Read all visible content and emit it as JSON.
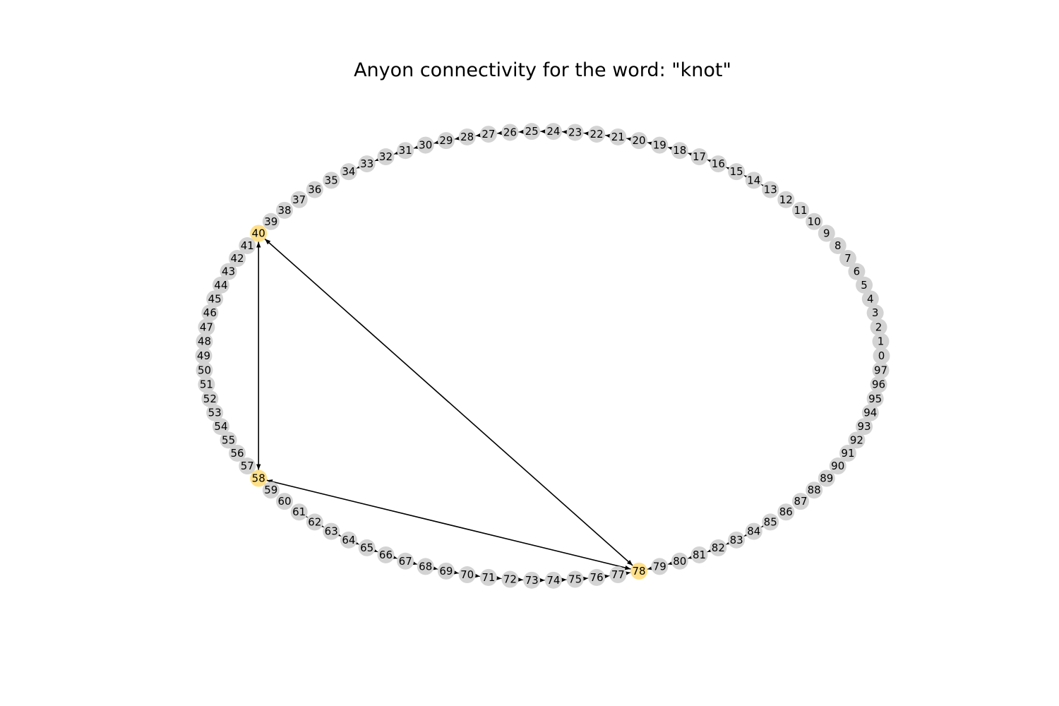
{
  "title": "Anyon connectivity for the word: \"knot\"",
  "colors": {
    "node_default": "#d3d3d3",
    "node_highlight": "#ffe08a",
    "edge": "#000000",
    "label": "#000000"
  },
  "graph": {
    "node_count": 98,
    "layout": "ellipse, node 0 at right, numbering counter-clockwise",
    "highlighted_nodes": [
      40,
      58,
      78
    ],
    "ring_arrows": [
      {
        "from": 80,
        "to": 79
      },
      {
        "from": 79,
        "to": 78
      },
      {
        "from": 77,
        "to": 78
      },
      {
        "from": 76,
        "to": 77
      },
      {
        "from": 75,
        "to": 76
      },
      {
        "from": 74,
        "to": 75
      },
      {
        "from": 73,
        "to": 74
      },
      {
        "from": 72,
        "to": 73
      },
      {
        "from": 71,
        "to": 72
      },
      {
        "from": 70,
        "to": 71
      },
      {
        "from": 69,
        "to": 70
      },
      {
        "from": 68,
        "to": 69
      },
      {
        "from": 67,
        "to": 68
      },
      {
        "from": 66,
        "to": 67
      },
      {
        "from": 65,
        "to": 66
      },
      {
        "from": 64,
        "to": 65
      },
      {
        "from": 63,
        "to": 64
      },
      {
        "from": 62,
        "to": 63
      },
      {
        "from": 61,
        "to": 62
      },
      {
        "from": 81,
        "to": 80
      },
      {
        "from": 82,
        "to": 81
      },
      {
        "from": 83,
        "to": 82
      },
      {
        "from": 84,
        "to": 83
      },
      {
        "from": 85,
        "to": 84
      },
      {
        "from": 59,
        "to": 58
      },
      {
        "from": 19,
        "to": 20
      },
      {
        "from": 20,
        "to": 21
      },
      {
        "from": 21,
        "to": 22
      },
      {
        "from": 22,
        "to": 23
      },
      {
        "from": 23,
        "to": 24
      },
      {
        "from": 24,
        "to": 25
      },
      {
        "from": 25,
        "to": 26
      },
      {
        "from": 26,
        "to": 27
      },
      {
        "from": 27,
        "to": 28
      },
      {
        "from": 28,
        "to": 29
      },
      {
        "from": 29,
        "to": 30
      },
      {
        "from": 30,
        "to": 31
      },
      {
        "from": 31,
        "to": 32
      },
      {
        "from": 32,
        "to": 33
      },
      {
        "from": 33,
        "to": 34
      },
      {
        "from": 18,
        "to": 19
      },
      {
        "from": 17,
        "to": 18
      },
      {
        "from": 16,
        "to": 17
      },
      {
        "from": 15,
        "to": 16
      },
      {
        "from": 14,
        "to": 15
      },
      {
        "from": 13,
        "to": 14
      }
    ],
    "edges": [
      {
        "from": 40,
        "to": 58,
        "direction": "both"
      },
      {
        "from": 40,
        "to": 78,
        "direction": "both"
      },
      {
        "from": 58,
        "to": 78,
        "direction": "both"
      }
    ]
  }
}
